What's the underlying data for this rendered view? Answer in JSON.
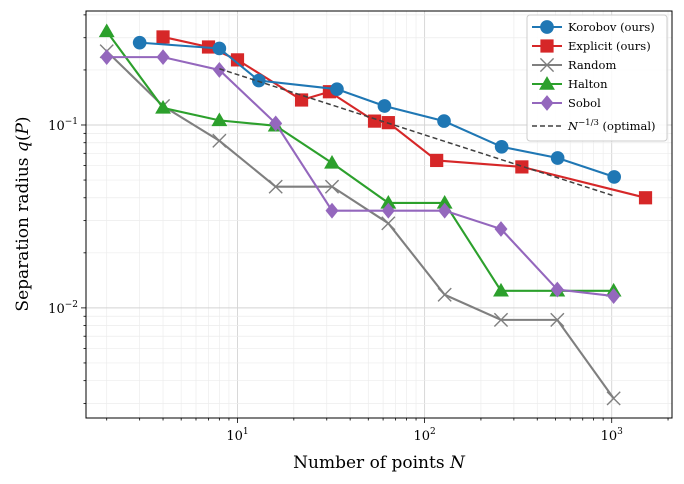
{
  "chart_data": {
    "type": "line",
    "xscale": "log",
    "yscale": "log",
    "xlim": [
      1.55,
      2100
    ],
    "ylim": [
      0.0025,
      0.42
    ],
    "grid": true,
    "legend_position": "top-right",
    "xlabel": "Number of points N",
    "ylabel": "Separation radius q(P)",
    "x_ticks": [
      {
        "value": 10,
        "base": "10",
        "exp": "1"
      },
      {
        "value": 100,
        "base": "10",
        "exp": "2"
      },
      {
        "value": 1000,
        "base": "10",
        "exp": "3"
      }
    ],
    "y_ticks": [
      {
        "value": 0.01,
        "base": "10",
        "exp": "−2"
      },
      {
        "value": 0.1,
        "base": "10",
        "exp": "−1"
      }
    ],
    "series": [
      {
        "name": "Korobov (ours)",
        "color": "#1f77b4",
        "marker": "circle",
        "dashed": false,
        "x": [
          3,
          8,
          13,
          34,
          61,
          127,
          258,
          514,
          1031
        ],
        "y": [
          0.282,
          0.262,
          0.175,
          0.157,
          0.127,
          0.105,
          0.076,
          0.066,
          0.052
        ]
      },
      {
        "name": "Explicit (ours)",
        "color": "#d62728",
        "marker": "square",
        "dashed": false,
        "x": [
          4,
          7,
          10,
          22,
          31,
          54,
          64,
          116,
          331,
          1516
        ],
        "y": [
          0.303,
          0.267,
          0.227,
          0.137,
          0.152,
          0.105,
          0.103,
          0.064,
          0.059,
          0.04
        ]
      },
      {
        "name": "Random",
        "color": "#7f7f7f",
        "marker": "x",
        "dashed": false,
        "x": [
          2,
          4,
          8,
          16,
          32,
          64,
          128,
          256,
          512,
          1024
        ],
        "y": [
          0.253,
          0.127,
          0.082,
          0.046,
          0.046,
          0.029,
          0.0118,
          0.0086,
          0.0086,
          0.0032
        ]
      },
      {
        "name": "Halton",
        "color": "#2ca02c",
        "marker": "triangle",
        "dashed": false,
        "x": [
          2,
          4,
          8,
          16,
          32,
          64,
          128,
          256,
          512,
          1024
        ],
        "y": [
          0.325,
          0.124,
          0.106,
          0.099,
          0.062,
          0.0375,
          0.0375,
          0.0124,
          0.0124,
          0.0124
        ]
      },
      {
        "name": "Sobol",
        "color": "#9467bd",
        "marker": "diamond",
        "dashed": false,
        "x": [
          2,
          4,
          8,
          16,
          32,
          64,
          128,
          256,
          512,
          1024
        ],
        "y": [
          0.235,
          0.235,
          0.2,
          0.102,
          0.034,
          0.034,
          0.034,
          0.027,
          0.0126,
          0.0116
        ]
      },
      {
        "name": "N^{-1/3} (optimal)",
        "color": "#404040",
        "marker": "none",
        "dashed": true,
        "x": [
          8,
          1024
        ],
        "y": [
          0.203,
          0.041
        ]
      }
    ]
  },
  "legend": {
    "items": [
      {
        "label": "Korobov (ours)"
      },
      {
        "label": "Explicit (ours)"
      },
      {
        "label": "Random"
      },
      {
        "label": "Halton"
      },
      {
        "label": "Sobol"
      },
      {
        "label_main": "N",
        "label_exp": "−1/3",
        "label_tail": " (optimal)"
      }
    ]
  }
}
